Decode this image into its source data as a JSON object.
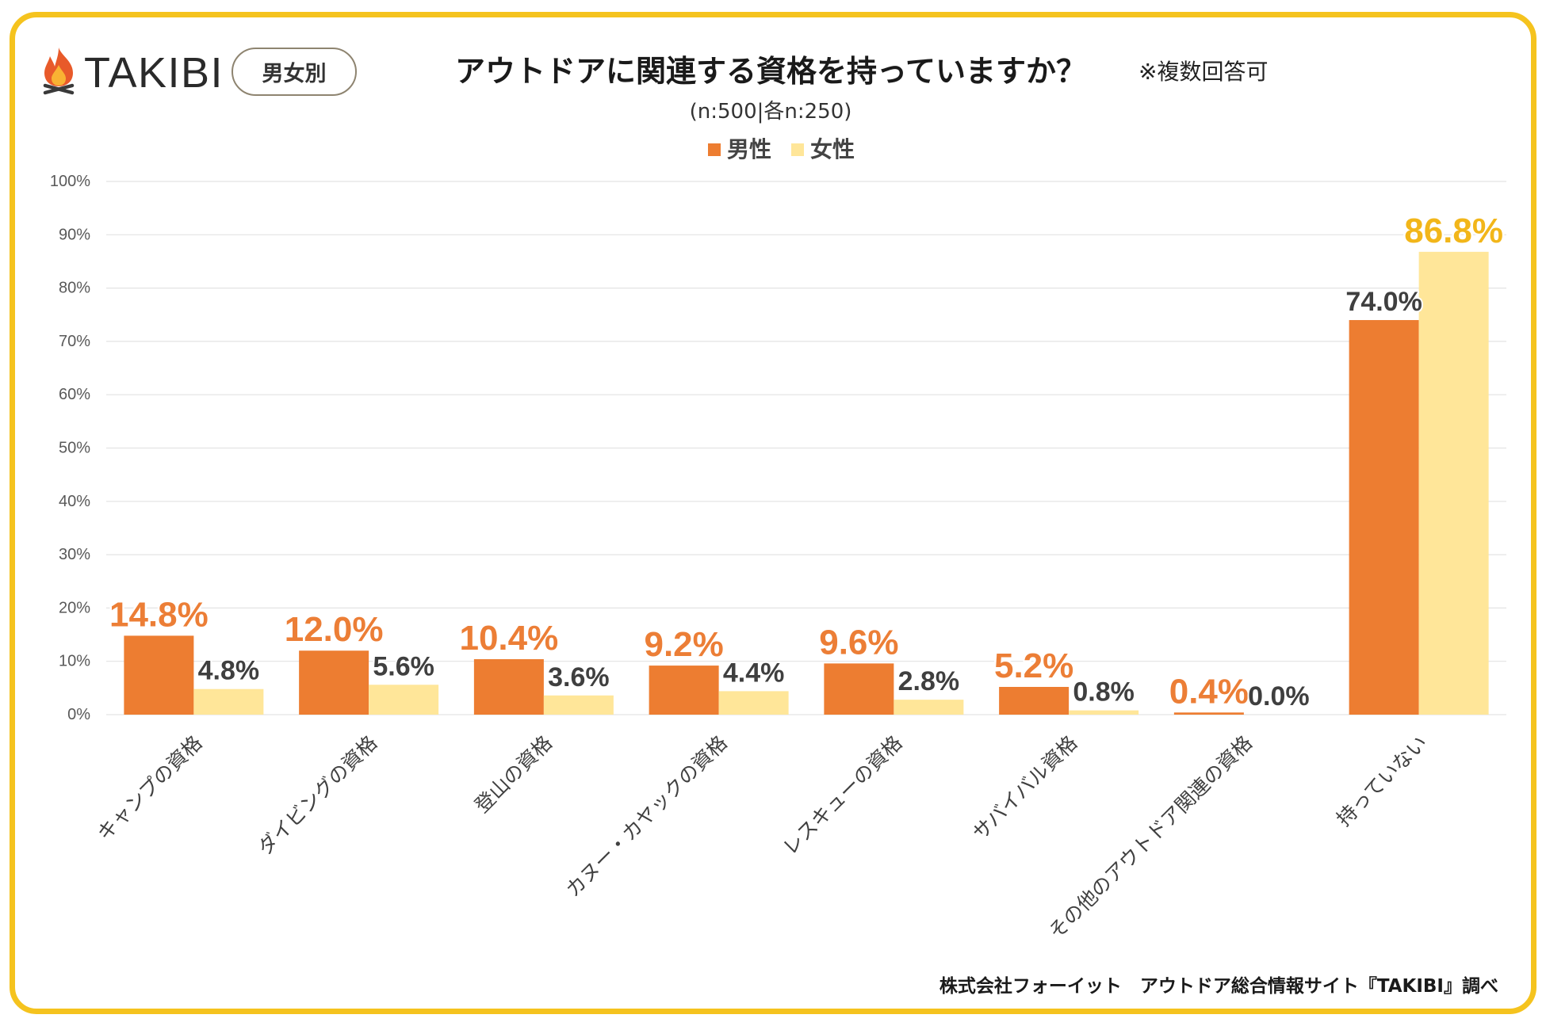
{
  "logo": {
    "text": "TAKIBI",
    "icon": "campfire-icon"
  },
  "badge": "男女別",
  "footer": "株式会社フォーイット　アウトドア総合情報サイト『TAKIBI』調べ",
  "colors": {
    "frame": "#F5C31E",
    "grid": "#E3E3E3",
    "label": "#3F3F3F"
  },
  "chart_data": {
    "type": "bar",
    "title": "アウトドアに関連する資格を持っていますか？",
    "note": "※複数回答可",
    "subtitle": "(n:500|各n:250)",
    "xlabel": "",
    "ylabel": "",
    "categories": [
      "キャンプの資格",
      "ダイビングの資格",
      "登山の資格",
      "カヌー・カヤックの資格",
      "レスキューの資格",
      "サバイバル資格",
      "その他のアウトドア関連の資格",
      "持っていない"
    ],
    "series": [
      {
        "name": "男性",
        "values": [
          14.8,
          12.0,
          10.4,
          9.2,
          9.6,
          5.2,
          0.4,
          74.0
        ],
        "color": "#ED7D31",
        "label_color": "#EC7E36"
      },
      {
        "name": "女性",
        "values": [
          4.8,
          5.6,
          3.6,
          4.4,
          2.8,
          0.8,
          0.0,
          86.8
        ],
        "color": "#FFE699",
        "label_color": "#F2B61A"
      }
    ],
    "ylim": [
      0,
      100
    ],
    "ytick_labels": [
      "0%",
      "10%",
      "20%",
      "30%",
      "40%",
      "50%",
      "60%",
      "70%",
      "80%",
      "90%",
      "100%"
    ],
    "value_suffix": "%",
    "legend": "top-center",
    "grid": true
  }
}
